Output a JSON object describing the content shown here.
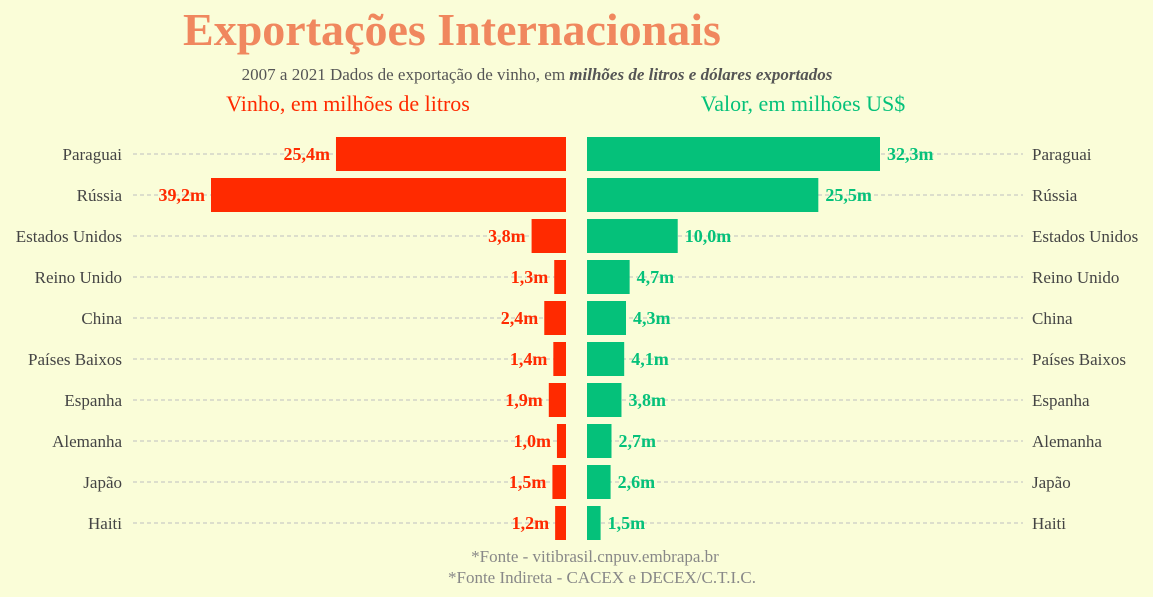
{
  "title": "Exportações Internacionais",
  "subtitle": {
    "prefix": "2007 a 2021 Dados de exportação de vinho, em ",
    "emphasis": "milhões de litros e dólares exportados"
  },
  "colors": {
    "background": "#fafdd8",
    "title": "#f0875e",
    "volume": "#ff2a00",
    "value": "#05c17a",
    "text": "#444444",
    "grid": "#bfbfbf"
  },
  "footnotes": [
    "*Fonte - vitibrasil.cnpuv.embrapa.br",
    "*Fonte Indireta - CACEX e DECEX/C.T.I.C."
  ],
  "chart_data": [
    {
      "type": "bar",
      "orientation": "horizontal-mirrored",
      "title": "Vinho, em milhões de litros",
      "categories": [
        "Paraguai",
        "Rússia",
        "Estados Unidos",
        "Reino Unido",
        "China",
        "Países Baixos",
        "Espanha",
        "Alemanha",
        "Japão",
        "Haiti"
      ],
      "values": [
        25.4,
        39.2,
        3.8,
        1.3,
        2.4,
        1.4,
        1.9,
        1.0,
        1.5,
        1.2
      ],
      "labels": [
        "25,4m",
        "39,2m",
        "3,8m",
        "1,3m",
        "2,4m",
        "1,4m",
        "1,9m",
        "1,0m",
        "1,5m",
        "1,2m"
      ],
      "color": "#ff2a00",
      "grid": true
    },
    {
      "type": "bar",
      "orientation": "horizontal",
      "title": "Valor, em milhões US$",
      "categories": [
        "Paraguai",
        "Rússia",
        "Estados Unidos",
        "Reino Unido",
        "China",
        "Países Baixos",
        "Espanha",
        "Alemanha",
        "Japão",
        "Haiti"
      ],
      "values": [
        32.3,
        25.5,
        10.0,
        4.7,
        4.3,
        4.1,
        3.8,
        2.7,
        2.6,
        1.5
      ],
      "labels": [
        "32,3m",
        "25,5m",
        "10,0m",
        "4,7m",
        "4,3m",
        "4,1m",
        "3,8m",
        "2,7m",
        "2,6m",
        "1,5m"
      ],
      "color": "#05c17a",
      "grid": true
    }
  ]
}
